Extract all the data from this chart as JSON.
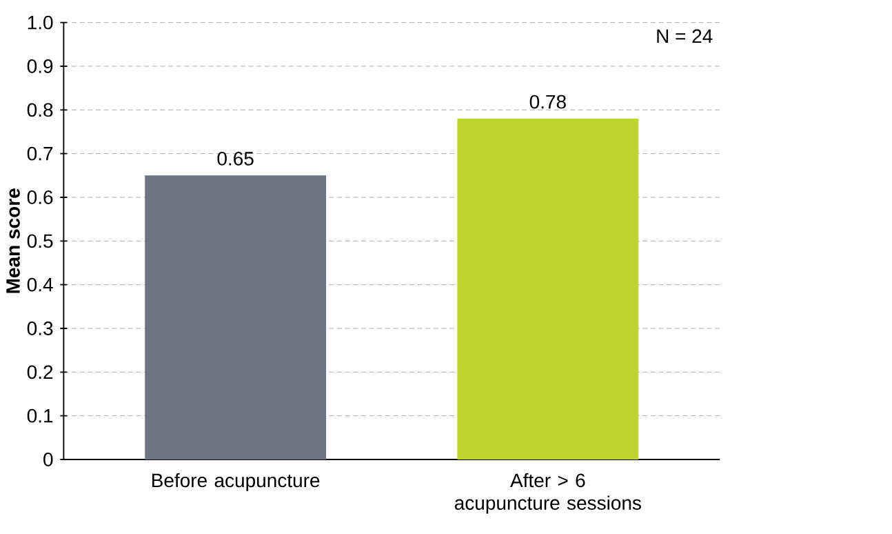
{
  "chart_data": {
    "type": "bar",
    "ylabel": "Mean score",
    "categories": [
      "Before acupuncture",
      "After > 6 acupuncture sessions"
    ],
    "values": [
      0.65,
      0.78
    ],
    "colors": [
      "#6b7480",
      "#bcd530"
    ],
    "ylim": [
      0,
      1.0
    ],
    "yticks": [
      0,
      0.1,
      0.2,
      0.3,
      0.4,
      0.5,
      0.6,
      0.7,
      0.8,
      0.9,
      {
        "value": 1.0,
        "label": "1.0"
      }
    ],
    "grid": "y",
    "data_labels": true,
    "annotations": [
      "N = 24"
    ]
  }
}
